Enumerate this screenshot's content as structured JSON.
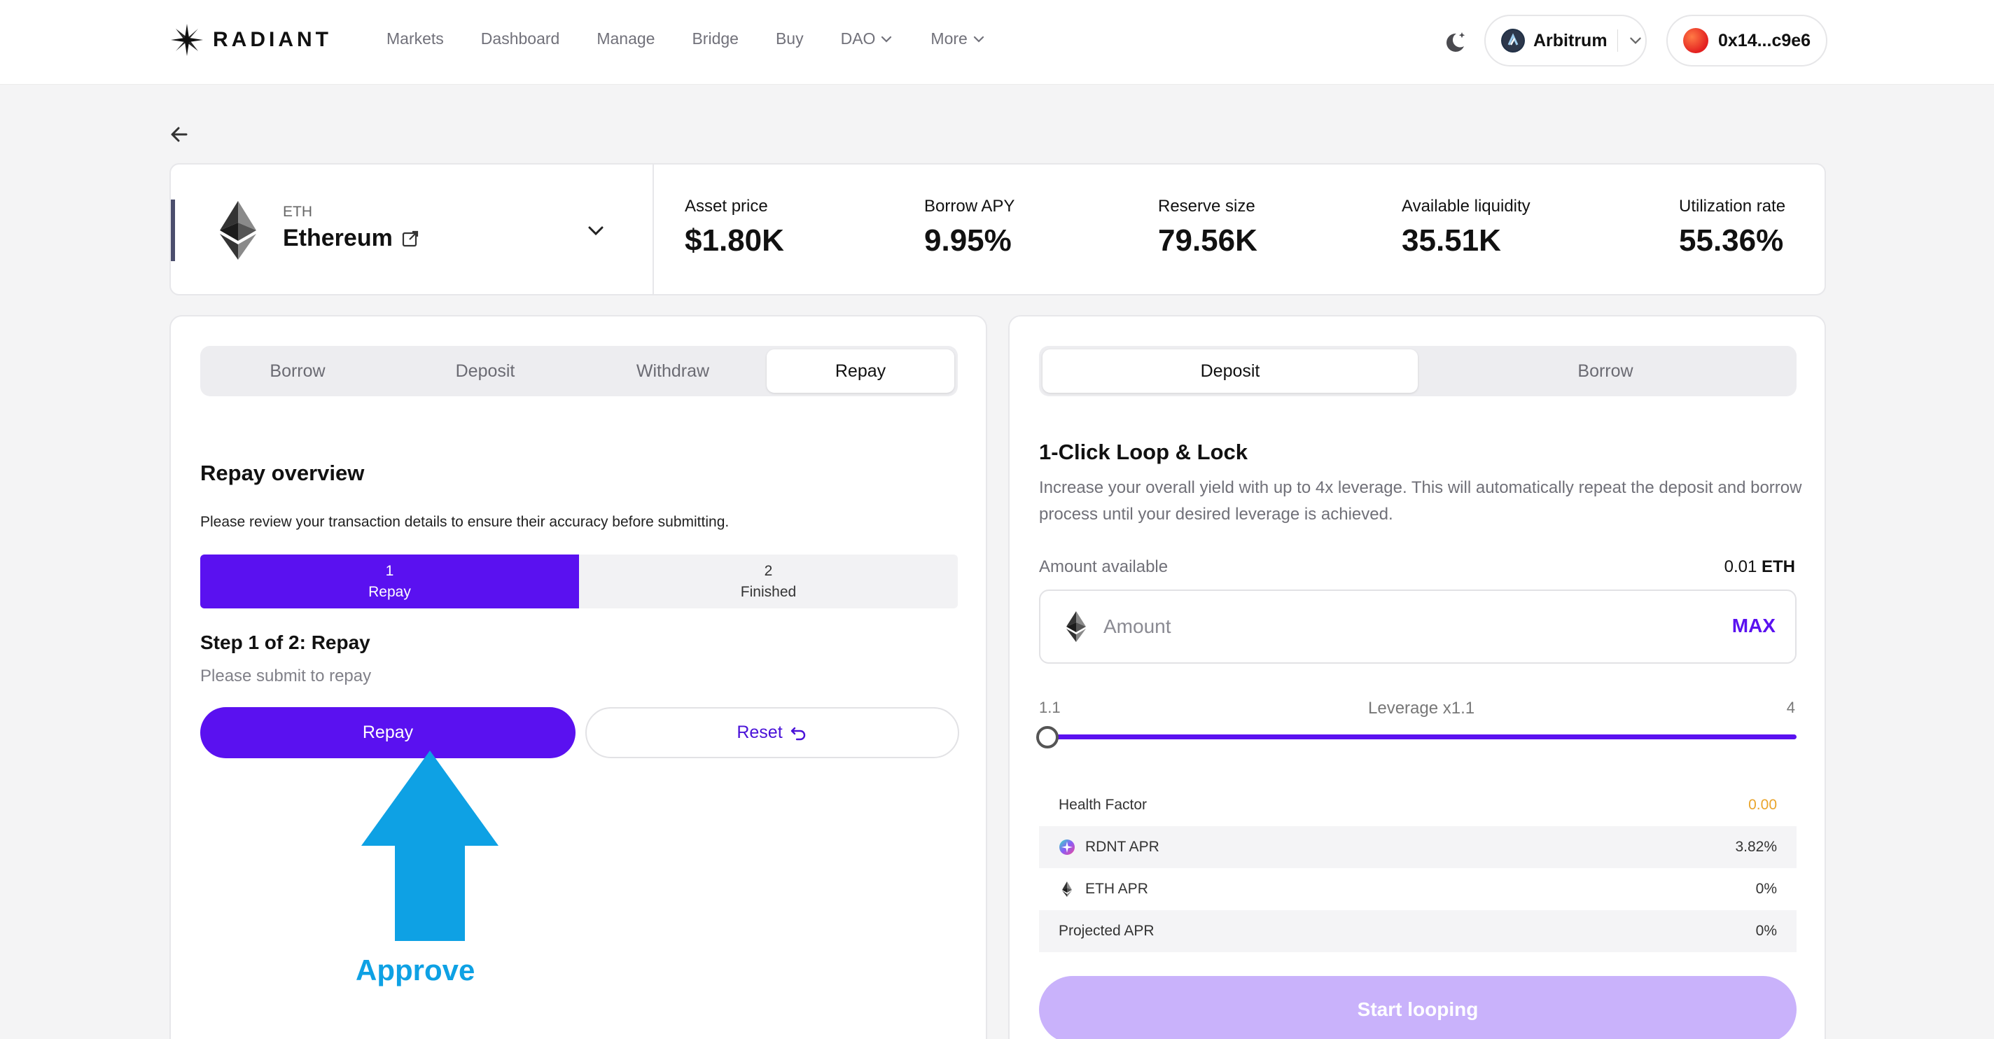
{
  "brand": {
    "name": "RADIANT"
  },
  "nav": {
    "items": [
      {
        "label": "Markets",
        "dropdown": false
      },
      {
        "label": "Dashboard",
        "dropdown": false
      },
      {
        "label": "Manage",
        "dropdown": false
      },
      {
        "label": "Bridge",
        "dropdown": false
      },
      {
        "label": "Buy",
        "dropdown": false
      },
      {
        "label": "DAO",
        "dropdown": true
      },
      {
        "label": "More",
        "dropdown": true
      }
    ]
  },
  "header": {
    "network": "Arbitrum",
    "wallet": "0x14...c9e6"
  },
  "asset": {
    "symbol": "ETH",
    "name": "Ethereum",
    "stats": [
      {
        "label": "Asset price",
        "value": "$1.80K"
      },
      {
        "label": "Borrow APY",
        "value": "9.95%"
      },
      {
        "label": "Reserve size",
        "value": "79.56K"
      },
      {
        "label": "Available liquidity",
        "value": "35.51K"
      },
      {
        "label": "Utilization rate",
        "value": "55.36%"
      }
    ]
  },
  "left_panel": {
    "tabs": [
      "Borrow",
      "Deposit",
      "Withdraw",
      "Repay"
    ],
    "active_tab": "Repay",
    "title": "Repay overview",
    "description": "Please review your transaction details to ensure their accuracy before submitting.",
    "steps": [
      {
        "number": "1",
        "label": "Repay",
        "active": true
      },
      {
        "number": "2",
        "label": "Finished",
        "active": false
      }
    ],
    "step_title": "Step 1 of 2: Repay",
    "step_subtitle": "Please submit to repay",
    "primary_button": "Repay",
    "secondary_button": "Reset",
    "annotation": "Approve"
  },
  "right_panel": {
    "tabs": [
      "Deposit",
      "Borrow"
    ],
    "active_tab": "Deposit",
    "title": "1-Click Loop & Lock",
    "description": "Increase your overall yield with up to 4x leverage. This will automatically repeat the deposit and borrow process until your desired leverage is achieved.",
    "amount_available_label": "Amount available",
    "amount_available_value": "0.01",
    "amount_available_unit": "ETH",
    "amount_placeholder": "Amount",
    "max_label": "MAX",
    "leverage": {
      "min": "1.1",
      "max": "4",
      "label": "Leverage x1.1",
      "value": 1.1
    },
    "stats": [
      {
        "label": "Health Factor",
        "value": "0.00",
        "icon": ""
      },
      {
        "label": "RDNT APR",
        "value": "3.82%",
        "icon": "rdnt-icon"
      },
      {
        "label": "ETH APR",
        "value": "0%",
        "icon": "eth-icon"
      },
      {
        "label": "Projected APR",
        "value": "0%",
        "icon": ""
      }
    ],
    "submit_button": "Start looping"
  },
  "colors": {
    "accent": "#5a11f0",
    "accent_disabled": "#c9b2fb",
    "annotation": "#0ea1e4",
    "health_factor": "#eaa52c"
  }
}
